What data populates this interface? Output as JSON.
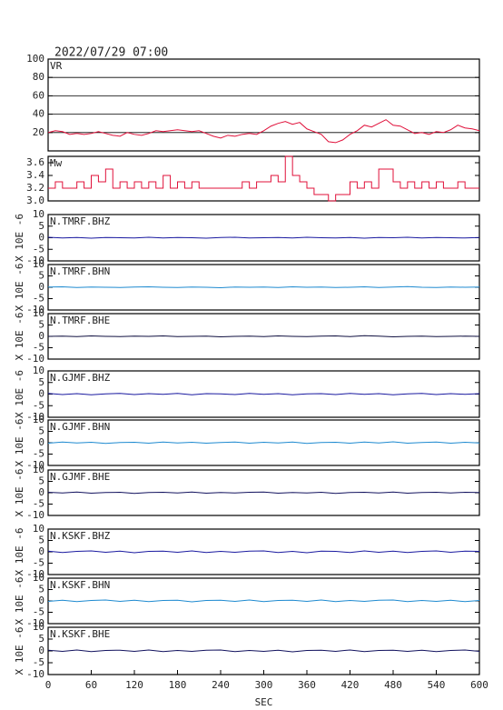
{
  "chart_data": [
    {
      "type": "line",
      "title": "2022/07/29 07:00",
      "label": "VR",
      "xlim": [
        0,
        600
      ],
      "ylim": [
        0,
        100
      ],
      "yticks": [
        20,
        40,
        60,
        80,
        100
      ],
      "grid": true,
      "x": [
        0,
        10,
        20,
        30,
        40,
        50,
        60,
        70,
        80,
        90,
        100,
        110,
        120,
        130,
        140,
        150,
        160,
        170,
        180,
        190,
        200,
        210,
        220,
        230,
        240,
        250,
        260,
        270,
        280,
        290,
        300,
        310,
        320,
        330,
        340,
        350,
        360,
        370,
        380,
        390,
        400,
        410,
        420,
        430,
        440,
        450,
        460,
        470,
        480,
        490,
        500,
        510,
        520,
        530,
        540,
        550,
        560,
        570,
        580,
        590,
        600
      ],
      "series": [
        {
          "color": "#e0103a",
          "values": [
            20,
            22,
            21,
            18,
            19,
            18,
            19,
            21,
            19,
            17,
            16,
            20,
            18,
            17,
            19,
            22,
            21,
            22,
            23,
            22,
            21,
            22,
            19,
            16,
            14,
            17,
            16,
            18,
            19,
            18,
            22,
            27,
            30,
            32,
            29,
            31,
            24,
            21,
            18,
            10,
            9,
            12,
            18,
            22,
            28,
            26,
            30,
            34,
            28,
            27,
            23,
            19,
            20,
            18,
            21,
            20,
            23,
            28,
            25,
            24,
            22
          ]
        }
      ]
    },
    {
      "type": "line",
      "label": "Mw",
      "xlim": [
        0,
        600
      ],
      "ylim": [
        3.0,
        3.7
      ],
      "yticks": [
        {
          "value": 3,
          "label": "3.0"
        },
        3.2,
        3.4,
        3.6
      ],
      "grid": false,
      "drawstyle": "steps",
      "x": [
        0,
        10,
        20,
        30,
        40,
        50,
        60,
        70,
        80,
        90,
        100,
        110,
        120,
        130,
        140,
        150,
        160,
        170,
        180,
        190,
        200,
        210,
        220,
        230,
        240,
        250,
        260,
        270,
        280,
        290,
        300,
        310,
        320,
        330,
        340,
        350,
        360,
        370,
        380,
        390,
        400,
        410,
        420,
        430,
        440,
        450,
        460,
        470,
        480,
        490,
        500,
        510,
        520,
        530,
        540,
        550,
        560,
        570,
        580,
        590,
        600
      ],
      "series": [
        {
          "color": "#e0103a",
          "values": [
            3.2,
            3.3,
            3.2,
            3.2,
            3.3,
            3.2,
            3.4,
            3.3,
            3.5,
            3.2,
            3.3,
            3.2,
            3.3,
            3.2,
            3.3,
            3.2,
            3.4,
            3.2,
            3.3,
            3.2,
            3.3,
            3.2,
            3.2,
            3.2,
            3.2,
            3.2,
            3.2,
            3.3,
            3.2,
            3.3,
            3.3,
            3.4,
            3.3,
            3.7,
            3.4,
            3.3,
            3.2,
            3.1,
            3.1,
            3.0,
            3.1,
            3.1,
            3.3,
            3.2,
            3.3,
            3.2,
            3.5,
            3.5,
            3.3,
            3.2,
            3.3,
            3.2,
            3.3,
            3.2,
            3.3,
            3.2,
            3.2,
            3.3,
            3.2,
            3.2,
            3.2
          ]
        }
      ]
    },
    {
      "type": "line",
      "label": "N.TMRF.BHZ",
      "ylabel": "X 10E -6",
      "xlim": [
        0,
        600
      ],
      "ylim": [
        -10,
        10
      ],
      "yticks": [
        -10,
        -5,
        0,
        5,
        10
      ],
      "x": [
        0,
        20,
        40,
        60,
        80,
        100,
        120,
        140,
        160,
        180,
        200,
        220,
        240,
        260,
        280,
        300,
        320,
        340,
        360,
        380,
        400,
        420,
        440,
        460,
        480,
        500,
        520,
        540,
        560,
        580,
        600
      ],
      "series": [
        {
          "color": "#1a1aa0",
          "values": [
            0.2,
            -0.1,
            0.1,
            -0.2,
            0.1,
            0,
            -0.1,
            0.2,
            -0.1,
            0.1,
            0,
            -0.2,
            0.1,
            0.2,
            -0.1,
            0,
            0.1,
            -0.1,
            0.2,
            0,
            -0.1,
            0.1,
            -0.2,
            0.1,
            0,
            0.2,
            -0.1,
            0.1,
            0,
            -0.1,
            0.1
          ]
        }
      ]
    },
    {
      "type": "line",
      "label": "N.TMRF.BHN",
      "ylabel": "X 10E -6",
      "xlim": [
        0,
        600
      ],
      "ylim": [
        -10,
        10
      ],
      "yticks": [
        -10,
        -5,
        0,
        5,
        10
      ],
      "x": [
        0,
        20,
        40,
        60,
        80,
        100,
        120,
        140,
        160,
        180,
        200,
        220,
        240,
        260,
        280,
        300,
        320,
        340,
        360,
        380,
        400,
        420,
        440,
        460,
        480,
        500,
        520,
        540,
        560,
        580,
        600
      ],
      "series": [
        {
          "color": "#1e8ad0",
          "values": [
            0.1,
            0.2,
            -0.1,
            0.1,
            0,
            -0.1,
            0.1,
            0.2,
            0,
            -0.1,
            0.1,
            0,
            -0.2,
            0.1,
            0,
            0.1,
            -0.1,
            0.2,
            0,
            0.1,
            -0.1,
            0,
            0.2,
            -0.1,
            0.1,
            0.3,
            0,
            -0.1,
            0.1,
            0,
            0.1
          ]
        }
      ]
    },
    {
      "type": "line",
      "label": "N.TMRF.BHE",
      "ylabel": "X 10E -6",
      "xlim": [
        0,
        600
      ],
      "ylim": [
        -10,
        10
      ],
      "yticks": [
        -10,
        -5,
        0,
        5,
        10
      ],
      "x": [
        0,
        20,
        40,
        60,
        80,
        100,
        120,
        140,
        160,
        180,
        200,
        220,
        240,
        260,
        280,
        300,
        320,
        340,
        360,
        380,
        400,
        420,
        440,
        460,
        480,
        500,
        520,
        540,
        560,
        580,
        600
      ],
      "series": [
        {
          "color": "#101040",
          "values": [
            0,
            0.1,
            -0.1,
            0.2,
            0,
            -0.1,
            0.1,
            0,
            0.2,
            -0.1,
            0,
            0.1,
            -0.2,
            0,
            0.1,
            -0.1,
            0.2,
            0,
            -0.1,
            0.1,
            0.2,
            -0.1,
            0.3,
            0.1,
            -0.2,
            0,
            0.1,
            -0.1,
            0,
            0.1,
            0
          ]
        }
      ]
    },
    {
      "type": "line",
      "label": "N.GJMF.BHZ",
      "ylabel": "X 10E -6",
      "xlim": [
        0,
        600
      ],
      "ylim": [
        -10,
        10
      ],
      "yticks": [
        -10,
        -5,
        0,
        5,
        10
      ],
      "x": [
        0,
        20,
        40,
        60,
        80,
        100,
        120,
        140,
        160,
        180,
        200,
        220,
        240,
        260,
        280,
        300,
        320,
        340,
        360,
        380,
        400,
        420,
        440,
        460,
        480,
        500,
        520,
        540,
        560,
        580,
        600
      ],
      "series": [
        {
          "color": "#1a1aa0",
          "values": [
            0.3,
            -0.2,
            0.2,
            -0.3,
            0.1,
            0.3,
            -0.2,
            0.2,
            -0.1,
            0.3,
            -0.3,
            0.2,
            0.1,
            -0.2,
            0.3,
            -0.1,
            0.2,
            -0.3,
            0.1,
            0.2,
            -0.2,
            0.3,
            -0.1,
            0.2,
            -0.3,
            0.1,
            0.3,
            -0.2,
            0.2,
            -0.1,
            0.2
          ]
        }
      ]
    },
    {
      "type": "line",
      "label": "N.GJMF.BHN",
      "ylabel": "X 10E -6",
      "xlim": [
        0,
        600
      ],
      "ylim": [
        -10,
        10
      ],
      "yticks": [
        -10,
        -5,
        0,
        5,
        10
      ],
      "x": [
        0,
        20,
        40,
        60,
        80,
        100,
        120,
        140,
        160,
        180,
        200,
        220,
        240,
        260,
        280,
        300,
        320,
        340,
        360,
        380,
        400,
        420,
        440,
        460,
        480,
        500,
        520,
        540,
        560,
        580,
        600
      ],
      "series": [
        {
          "color": "#1e8ad0",
          "values": [
            -0.2,
            0.3,
            -0.1,
            0.2,
            -0.3,
            0.1,
            0.2,
            -0.2,
            0.3,
            -0.1,
            0.2,
            -0.2,
            0.1,
            0.3,
            -0.2,
            0.2,
            -0.1,
            0.3,
            -0.3,
            0.1,
            0.2,
            -0.2,
            0.3,
            -0.1,
            0.4,
            -0.2,
            0.1,
            0.3,
            -0.2,
            0.2,
            -0.1
          ]
        }
      ]
    },
    {
      "type": "line",
      "label": "N.GJMF.BHE",
      "ylabel": "X 10E -6",
      "xlim": [
        0,
        600
      ],
      "ylim": [
        -10,
        10
      ],
      "yticks": [
        -10,
        -5,
        0,
        5,
        10
      ],
      "x": [
        0,
        20,
        40,
        60,
        80,
        100,
        120,
        140,
        160,
        180,
        200,
        220,
        240,
        260,
        280,
        300,
        320,
        340,
        360,
        380,
        400,
        420,
        440,
        460,
        480,
        500,
        520,
        540,
        560,
        580,
        600
      ],
      "series": [
        {
          "color": "#12125e",
          "values": [
            0.2,
            -0.1,
            0.3,
            -0.2,
            0.1,
            0.2,
            -0.3,
            0.1,
            0.2,
            -0.1,
            0.3,
            -0.2,
            0.1,
            -0.1,
            0.2,
            0.3,
            -0.2,
            0.1,
            -0.1,
            0.2,
            -0.3,
            0.1,
            0.2,
            -0.1,
            0.3,
            -0.2,
            0.1,
            0.2,
            -0.1,
            0.2,
            0.1
          ]
        }
      ]
    },
    {
      "type": "line",
      "label": "N.KSKF.BHZ",
      "ylabel": "X 10E -6",
      "xlim": [
        0,
        600
      ],
      "ylim": [
        -10,
        10
      ],
      "yticks": [
        -10,
        -5,
        0,
        5,
        10
      ],
      "x": [
        0,
        20,
        40,
        60,
        80,
        100,
        120,
        140,
        160,
        180,
        200,
        220,
        240,
        260,
        280,
        300,
        320,
        340,
        360,
        380,
        400,
        420,
        440,
        460,
        480,
        500,
        520,
        540,
        560,
        580,
        600
      ],
      "series": [
        {
          "color": "#1a1aa0",
          "values": [
            0.3,
            -0.3,
            0.2,
            0.4,
            -0.2,
            0.3,
            -0.4,
            0.2,
            0.3,
            -0.2,
            0.4,
            -0.3,
            0.2,
            -0.2,
            0.3,
            0.4,
            -0.3,
            0.2,
            -0.4,
            0.3,
            0.2,
            -0.3,
            0.4,
            -0.2,
            0.3,
            -0.3,
            0.2,
            0.4,
            -0.2,
            0.3,
            0.2
          ]
        }
      ]
    },
    {
      "type": "line",
      "label": "N.KSKF.BHN",
      "ylabel": "X 10E -6",
      "xlim": [
        0,
        600
      ],
      "ylim": [
        -10,
        10
      ],
      "yticks": [
        -10,
        -5,
        0,
        5,
        10
      ],
      "x": [
        0,
        20,
        40,
        60,
        80,
        100,
        120,
        140,
        160,
        180,
        200,
        220,
        240,
        260,
        280,
        300,
        320,
        340,
        360,
        380,
        400,
        420,
        440,
        460,
        480,
        500,
        520,
        540,
        560,
        580,
        600
      ],
      "series": [
        {
          "color": "#1e8ad0",
          "values": [
            -0.2,
            0.3,
            -0.3,
            0.2,
            0.4,
            -0.2,
            0.3,
            -0.3,
            0.2,
            0.3,
            -0.4,
            0.2,
            0.3,
            -0.2,
            0.4,
            -0.3,
            0.2,
            0.3,
            -0.2,
            0.4,
            -0.3,
            0.2,
            -0.2,
            0.3,
            0.4,
            -0.3,
            0.2,
            -0.2,
            0.3,
            -0.3,
            0.2
          ]
        }
      ]
    },
    {
      "type": "line",
      "label": "N.KSKF.BHE",
      "ylabel": "X 10E -6",
      "xlim": [
        0,
        600
      ],
      "ylim": [
        -10,
        10
      ],
      "yticks": [
        -10,
        -5,
        0,
        5,
        10
      ],
      "xticks": [
        0,
        60,
        120,
        180,
        240,
        300,
        360,
        420,
        480,
        540,
        600
      ],
      "xlabel": "SEC",
      "x": [
        0,
        20,
        40,
        60,
        80,
        100,
        120,
        140,
        160,
        180,
        200,
        220,
        240,
        260,
        280,
        300,
        320,
        340,
        360,
        380,
        400,
        420,
        440,
        460,
        480,
        500,
        520,
        540,
        560,
        580,
        600
      ],
      "series": [
        {
          "color": "#12125e",
          "values": [
            0.3,
            -0.2,
            0.4,
            -0.3,
            0.2,
            0.3,
            -0.2,
            0.4,
            -0.3,
            0.2,
            -0.2,
            0.3,
            0.4,
            -0.3,
            0.2,
            -0.2,
            0.3,
            -0.4,
            0.2,
            0.3,
            -0.2,
            0.4,
            -0.3,
            0.2,
            0.3,
            -0.2,
            0.3,
            -0.3,
            0.2,
            0.4,
            -0.2
          ]
        }
      ]
    }
  ]
}
